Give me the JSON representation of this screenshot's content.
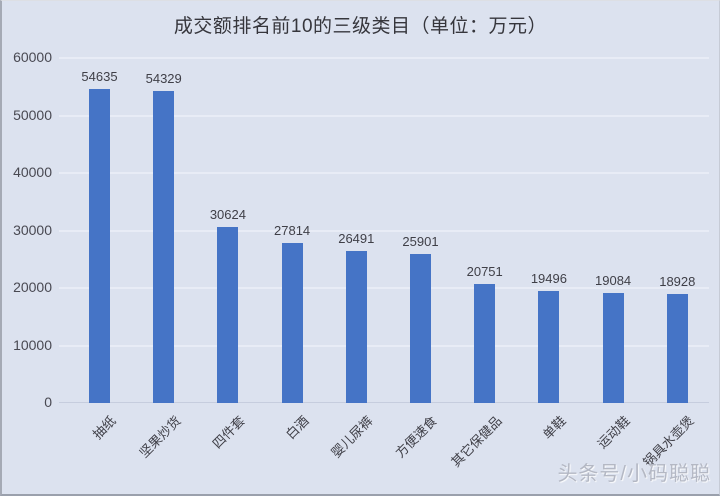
{
  "page": {
    "background_color": "#dce2ef"
  },
  "chart_data": {
    "type": "bar",
    "title": "成交额排名前10的三级类目（单位：万元）",
    "categories": [
      "抽纸",
      "坚果炒货",
      "四件套",
      "白酒",
      "婴儿尿裤",
      "方便速食",
      "其它保健品",
      "单鞋",
      "运动鞋",
      "锅具水壶煲"
    ],
    "values": [
      54635,
      54329,
      30624,
      27814,
      26491,
      25901,
      20751,
      19496,
      19084,
      18928
    ],
    "data_labels": [
      54635,
      54329,
      30624,
      27814,
      26491,
      25901,
      20751,
      19496,
      19084,
      18928
    ],
    "ylim": [
      0,
      60000
    ],
    "yticks": [
      0,
      10000,
      20000,
      30000,
      40000,
      50000,
      60000
    ],
    "xlabel": "",
    "ylabel": "",
    "grid": true,
    "legend_position": "none",
    "bar_color": "#4574c6",
    "gridline_color": "#e8ecf6",
    "x_label_rotation_deg": 45
  },
  "watermark": {
    "text": "头条号/小码聪聪"
  }
}
